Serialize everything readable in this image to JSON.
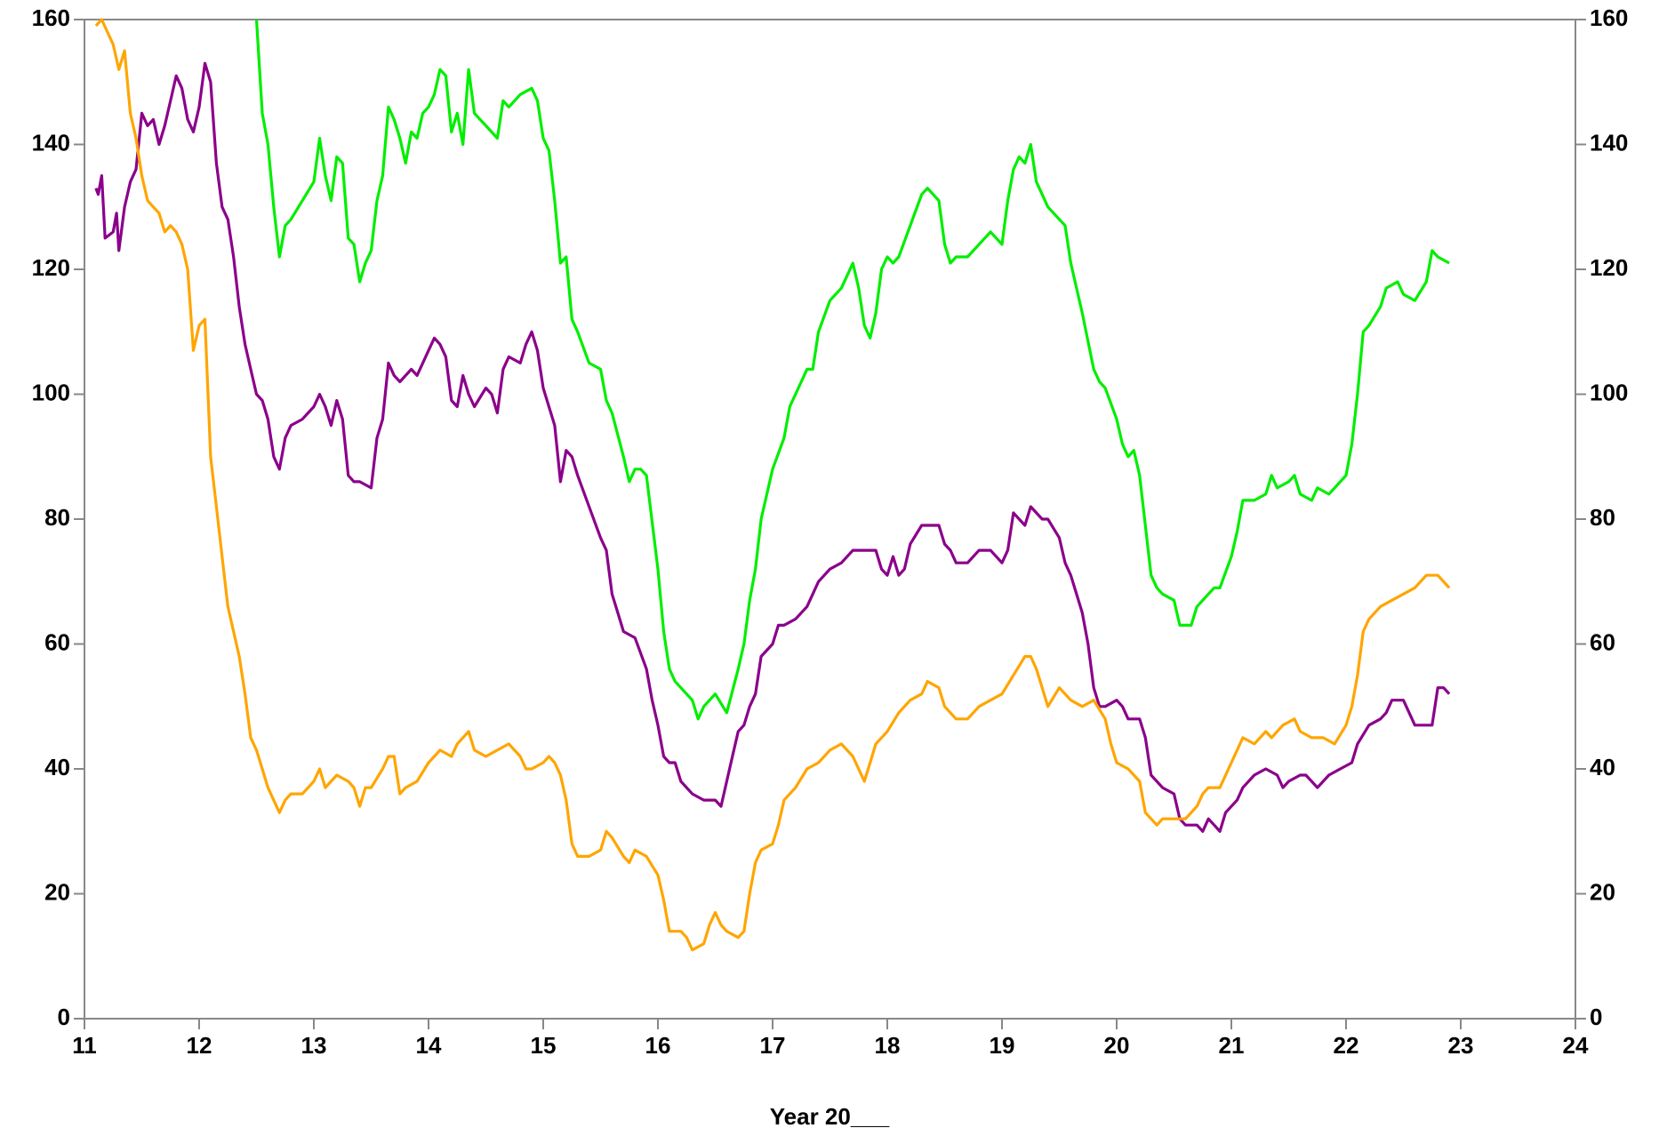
{
  "chart_data": {
    "type": "line",
    "x_label": "Year 20___",
    "xlim": [
      11,
      24
    ],
    "xticks": [
      11,
      12,
      13,
      14,
      15,
      16,
      17,
      18,
      19,
      20,
      21,
      22,
      23,
      24
    ],
    "ylim": [
      0,
      160
    ],
    "yticks": [
      0,
      20,
      40,
      60,
      80,
      100,
      120,
      140,
      160
    ],
    "right_axis": true,
    "series": [
      {
        "color": "#00ee00",
        "x": [
          12.5,
          12.55,
          12.6,
          12.65,
          12.7,
          12.75,
          12.8,
          12.9,
          13.0,
          13.05,
          13.1,
          13.15,
          13.2,
          13.25,
          13.3,
          13.35,
          13.4,
          13.45,
          13.5,
          13.55,
          13.6,
          13.65,
          13.7,
          13.75,
          13.8,
          13.85,
          13.9,
          13.95,
          14.0,
          14.05,
          14.1,
          14.15,
          14.2,
          14.25,
          14.3,
          14.35,
          14.4,
          14.45,
          14.5,
          14.6,
          14.65,
          14.7,
          14.8,
          14.9,
          14.95,
          15.0,
          15.05,
          15.1,
          15.15,
          15.2,
          15.25,
          15.3,
          15.4,
          15.5,
          15.55,
          15.6,
          15.7,
          15.75,
          15.8,
          15.85,
          15.9,
          16.0,
          16.05,
          16.1,
          16.15,
          16.2,
          16.3,
          16.35,
          16.4,
          16.5,
          16.6,
          16.7,
          16.75,
          16.8,
          16.85,
          16.9,
          17.0,
          17.1,
          17.15,
          17.2,
          17.3,
          17.35,
          17.4,
          17.5,
          17.6,
          17.7,
          17.75,
          17.8,
          17.85,
          17.9,
          17.95,
          18.0,
          18.05,
          18.1,
          18.2,
          18.3,
          18.35,
          18.45,
          18.5,
          18.55,
          18.6,
          18.7,
          18.8,
          18.9,
          19.0,
          19.05,
          19.1,
          19.15,
          19.2,
          19.25,
          19.3,
          19.35,
          19.4,
          19.5,
          19.55,
          19.6,
          19.7,
          19.8,
          19.85,
          19.9,
          20.0,
          20.05,
          20.1,
          20.15,
          20.2,
          20.3,
          20.35,
          20.4,
          20.5,
          20.55,
          20.65,
          20.7,
          20.75,
          20.8,
          20.85,
          20.9,
          21.0,
          21.05,
          21.1,
          21.2,
          21.3,
          21.35,
          21.4,
          21.5,
          21.55,
          21.6,
          21.7,
          21.75,
          21.85,
          21.95,
          22.0,
          22.05,
          22.1,
          22.15,
          22.2,
          22.3,
          22.35,
          22.45,
          22.5,
          22.6,
          22.7,
          22.75,
          22.8,
          22.9
        ],
        "values": [
          160,
          145,
          140,
          130,
          122,
          127,
          128,
          131,
          134,
          141,
          135,
          131,
          138,
          137,
          125,
          124,
          118,
          121,
          123,
          131,
          135,
          146,
          144,
          141,
          137,
          142,
          141,
          145,
          146,
          148,
          152,
          151,
          142,
          145,
          140,
          152,
          145,
          144,
          143,
          141,
          147,
          146,
          148,
          149,
          147,
          141,
          139,
          131,
          121,
          122,
          112,
          110,
          105,
          104,
          99,
          97,
          90,
          86,
          88,
          88,
          87,
          72,
          62,
          56,
          54,
          53,
          51,
          48,
          50,
          52,
          49,
          56,
          60,
          67,
          72,
          80,
          88,
          93,
          98,
          100,
          104,
          104,
          110,
          115,
          117,
          121,
          117,
          111,
          109,
          113,
          120,
          122,
          121,
          122,
          127,
          132,
          133,
          131,
          124,
          121,
          122,
          122,
          124,
          126,
          124,
          131,
          136,
          138,
          137,
          140,
          134,
          132,
          130,
          128,
          127,
          121,
          113,
          104,
          102,
          101,
          96,
          92,
          90,
          91,
          87,
          71,
          69,
          68,
          67,
          63,
          63,
          66,
          67,
          68,
          69,
          69,
          74,
          78,
          83,
          83,
          84,
          87,
          85,
          86,
          87,
          84,
          83,
          85,
          84,
          86,
          87,
          92,
          100,
          110,
          111,
          114,
          117,
          118,
          116,
          115,
          118,
          123,
          122,
          121
        ]
      },
      {
        "color": "#8b008b",
        "x": [
          11.1,
          11.12,
          11.15,
          11.18,
          11.25,
          11.28,
          11.3,
          11.35,
          11.4,
          11.45,
          11.5,
          11.55,
          11.6,
          11.65,
          11.7,
          11.75,
          11.8,
          11.85,
          11.9,
          11.95,
          12.0,
          12.05,
          12.1,
          12.15,
          12.2,
          12.25,
          12.3,
          12.35,
          12.4,
          12.45,
          12.5,
          12.55,
          12.6,
          12.65,
          12.7,
          12.75,
          12.8,
          12.9,
          13.0,
          13.05,
          13.1,
          13.15,
          13.2,
          13.25,
          13.3,
          13.35,
          13.4,
          13.5,
          13.55,
          13.6,
          13.65,
          13.7,
          13.75,
          13.85,
          13.9,
          14.0,
          14.05,
          14.1,
          14.15,
          14.2,
          14.25,
          14.3,
          14.35,
          14.4,
          14.5,
          14.55,
          14.6,
          14.65,
          14.7,
          14.8,
          14.85,
          14.9,
          14.95,
          15.0,
          15.1,
          15.15,
          15.2,
          15.25,
          15.3,
          15.4,
          15.5,
          15.55,
          15.6,
          15.65,
          15.7,
          15.8,
          15.9,
          15.95,
          16.0,
          16.05,
          16.1,
          16.15,
          16.2,
          16.3,
          16.4,
          16.5,
          16.55,
          16.6,
          16.65,
          16.7,
          16.75,
          16.8,
          16.85,
          16.9,
          17.0,
          17.05,
          17.1,
          17.2,
          17.3,
          17.35,
          17.4,
          17.5,
          17.6,
          17.7,
          17.8,
          17.9,
          17.95,
          18.0,
          18.05,
          18.1,
          18.15,
          18.2,
          18.3,
          18.35,
          18.45,
          18.5,
          18.55,
          18.6,
          18.7,
          18.8,
          18.9,
          19.0,
          19.05,
          19.1,
          19.15,
          19.2,
          19.25,
          19.35,
          19.4,
          19.5,
          19.55,
          19.6,
          19.7,
          19.75,
          19.8,
          19.85,
          19.9,
          20.0,
          20.05,
          20.1,
          20.2,
          20.25,
          20.3,
          20.4,
          20.5,
          20.55,
          20.6,
          20.7,
          20.75,
          20.8,
          20.85,
          20.9,
          20.95,
          21.05,
          21.1,
          21.2,
          21.3,
          21.4,
          21.45,
          21.5,
          21.6,
          21.65,
          21.7,
          21.75,
          21.85,
          21.95,
          22.05,
          22.1,
          22.2,
          22.3,
          22.35,
          22.4,
          22.5,
          22.6,
          22.75,
          22.8,
          22.85,
          22.9
        ],
        "values": [
          133,
          132,
          135,
          125,
          126,
          129,
          123,
          130,
          134,
          136,
          145,
          143,
          144,
          140,
          143,
          147,
          151,
          149,
          144,
          142,
          146,
          153,
          150,
          137,
          130,
          128,
          122,
          114,
          108,
          104,
          100,
          99,
          96,
          90,
          88,
          93,
          95,
          96,
          98,
          100,
          98,
          95,
          99,
          96,
          87,
          86,
          86,
          85,
          93,
          96,
          105,
          103,
          102,
          104,
          103,
          107,
          109,
          108,
          106,
          99,
          98,
          103,
          100,
          98,
          101,
          100,
          97,
          104,
          106,
          105,
          108,
          110,
          107,
          101,
          95,
          86,
          91,
          90,
          87,
          82,
          77,
          75,
          68,
          65,
          62,
          61,
          56,
          51,
          47,
          42,
          41,
          41,
          38,
          36,
          35,
          35,
          34,
          38,
          42,
          46,
          47,
          50,
          52,
          58,
          60,
          63,
          63,
          64,
          66,
          68,
          70,
          72,
          73,
          75,
          75,
          75,
          72,
          71,
          74,
          71,
          72,
          76,
          79,
          79,
          79,
          76,
          75,
          73,
          73,
          75,
          75,
          73,
          75,
          81,
          80,
          79,
          82,
          80,
          80,
          77,
          73,
          71,
          65,
          60,
          53,
          50,
          50,
          51,
          50,
          48,
          48,
          45,
          39,
          37,
          36,
          32,
          31,
          31,
          30,
          32,
          31,
          30,
          33,
          35,
          37,
          39,
          40,
          39,
          37,
          38,
          39,
          39,
          38,
          37,
          39,
          40,
          41,
          44,
          47,
          48,
          49,
          51,
          51,
          47,
          47,
          53,
          53,
          52
        ]
      },
      {
        "color": "#ffa500",
        "x": [
          11.1,
          11.15,
          11.2,
          11.25,
          11.3,
          11.35,
          11.4,
          11.45,
          11.5,
          11.55,
          11.6,
          11.65,
          11.7,
          11.75,
          11.8,
          11.85,
          11.9,
          11.95,
          12.0,
          12.05,
          12.1,
          12.15,
          12.2,
          12.25,
          12.3,
          12.35,
          12.4,
          12.45,
          12.5,
          12.55,
          12.6,
          12.7,
          12.75,
          12.8,
          12.9,
          13.0,
          13.05,
          13.1,
          13.15,
          13.2,
          13.3,
          13.35,
          13.4,
          13.45,
          13.5,
          13.6,
          13.65,
          13.7,
          13.75,
          13.8,
          13.9,
          14.0,
          14.05,
          14.1,
          14.2,
          14.25,
          14.3,
          14.35,
          14.4,
          14.5,
          14.6,
          14.7,
          14.8,
          14.85,
          14.9,
          15.0,
          15.05,
          15.1,
          15.15,
          15.2,
          15.25,
          15.3,
          15.4,
          15.5,
          15.55,
          15.6,
          15.7,
          15.75,
          15.8,
          15.9,
          16.0,
          16.05,
          16.1,
          16.2,
          16.25,
          16.3,
          16.4,
          16.45,
          16.5,
          16.55,
          16.6,
          16.7,
          16.75,
          16.8,
          16.85,
          16.9,
          17.0,
          17.05,
          17.1,
          17.2,
          17.3,
          17.4,
          17.5,
          17.6,
          17.7,
          17.8,
          17.85,
          17.9,
          18.0,
          18.1,
          18.2,
          18.3,
          18.35,
          18.45,
          18.5,
          18.6,
          18.7,
          18.8,
          18.9,
          19.0,
          19.1,
          19.2,
          19.25,
          19.3,
          19.35,
          19.4,
          19.5,
          19.6,
          19.7,
          19.8,
          19.9,
          19.95,
          20.0,
          20.1,
          20.2,
          20.25,
          20.3,
          20.35,
          20.4,
          20.5,
          20.6,
          20.7,
          20.75,
          20.8,
          20.9,
          21.0,
          21.05,
          21.1,
          21.2,
          21.3,
          21.35,
          21.45,
          21.55,
          21.6,
          21.7,
          21.8,
          21.9,
          22.0,
          22.05,
          22.1,
          22.15,
          22.2,
          22.3,
          22.4,
          22.5,
          22.6,
          22.7,
          22.8,
          22.9
        ],
        "values": [
          159,
          160,
          158,
          156,
          152,
          155,
          145,
          141,
          135,
          131,
          130,
          129,
          126,
          127,
          126,
          124,
          120,
          107,
          111,
          112,
          90,
          82,
          74,
          66,
          62,
          58,
          52,
          45,
          43,
          40,
          37,
          33,
          35,
          36,
          36,
          38,
          40,
          37,
          38,
          39,
          38,
          37,
          34,
          37,
          37,
          40,
          42,
          42,
          36,
          37,
          38,
          41,
          42,
          43,
          42,
          44,
          45,
          46,
          43,
          42,
          43,
          44,
          42,
          40,
          40,
          41,
          42,
          41,
          39,
          35,
          28,
          26,
          26,
          27,
          30,
          29,
          26,
          25,
          27,
          26,
          23,
          19,
          14,
          14,
          13,
          11,
          12,
          15,
          17,
          15,
          14,
          13,
          14,
          20,
          25,
          27,
          28,
          31,
          35,
          37,
          40,
          41,
          43,
          44,
          42,
          38,
          41,
          44,
          46,
          49,
          51,
          52,
          54,
          53,
          50,
          48,
          48,
          50,
          51,
          52,
          55,
          58,
          58,
          56,
          53,
          50,
          53,
          51,
          50,
          51,
          48,
          44,
          41,
          40,
          38,
          33,
          32,
          31,
          32,
          32,
          32,
          34,
          36,
          37,
          37,
          41,
          43,
          45,
          44,
          46,
          45,
          47,
          48,
          46,
          45,
          45,
          44,
          47,
          50,
          55,
          62,
          64,
          66,
          67,
          68,
          69,
          71,
          71,
          69
        ]
      }
    ]
  }
}
